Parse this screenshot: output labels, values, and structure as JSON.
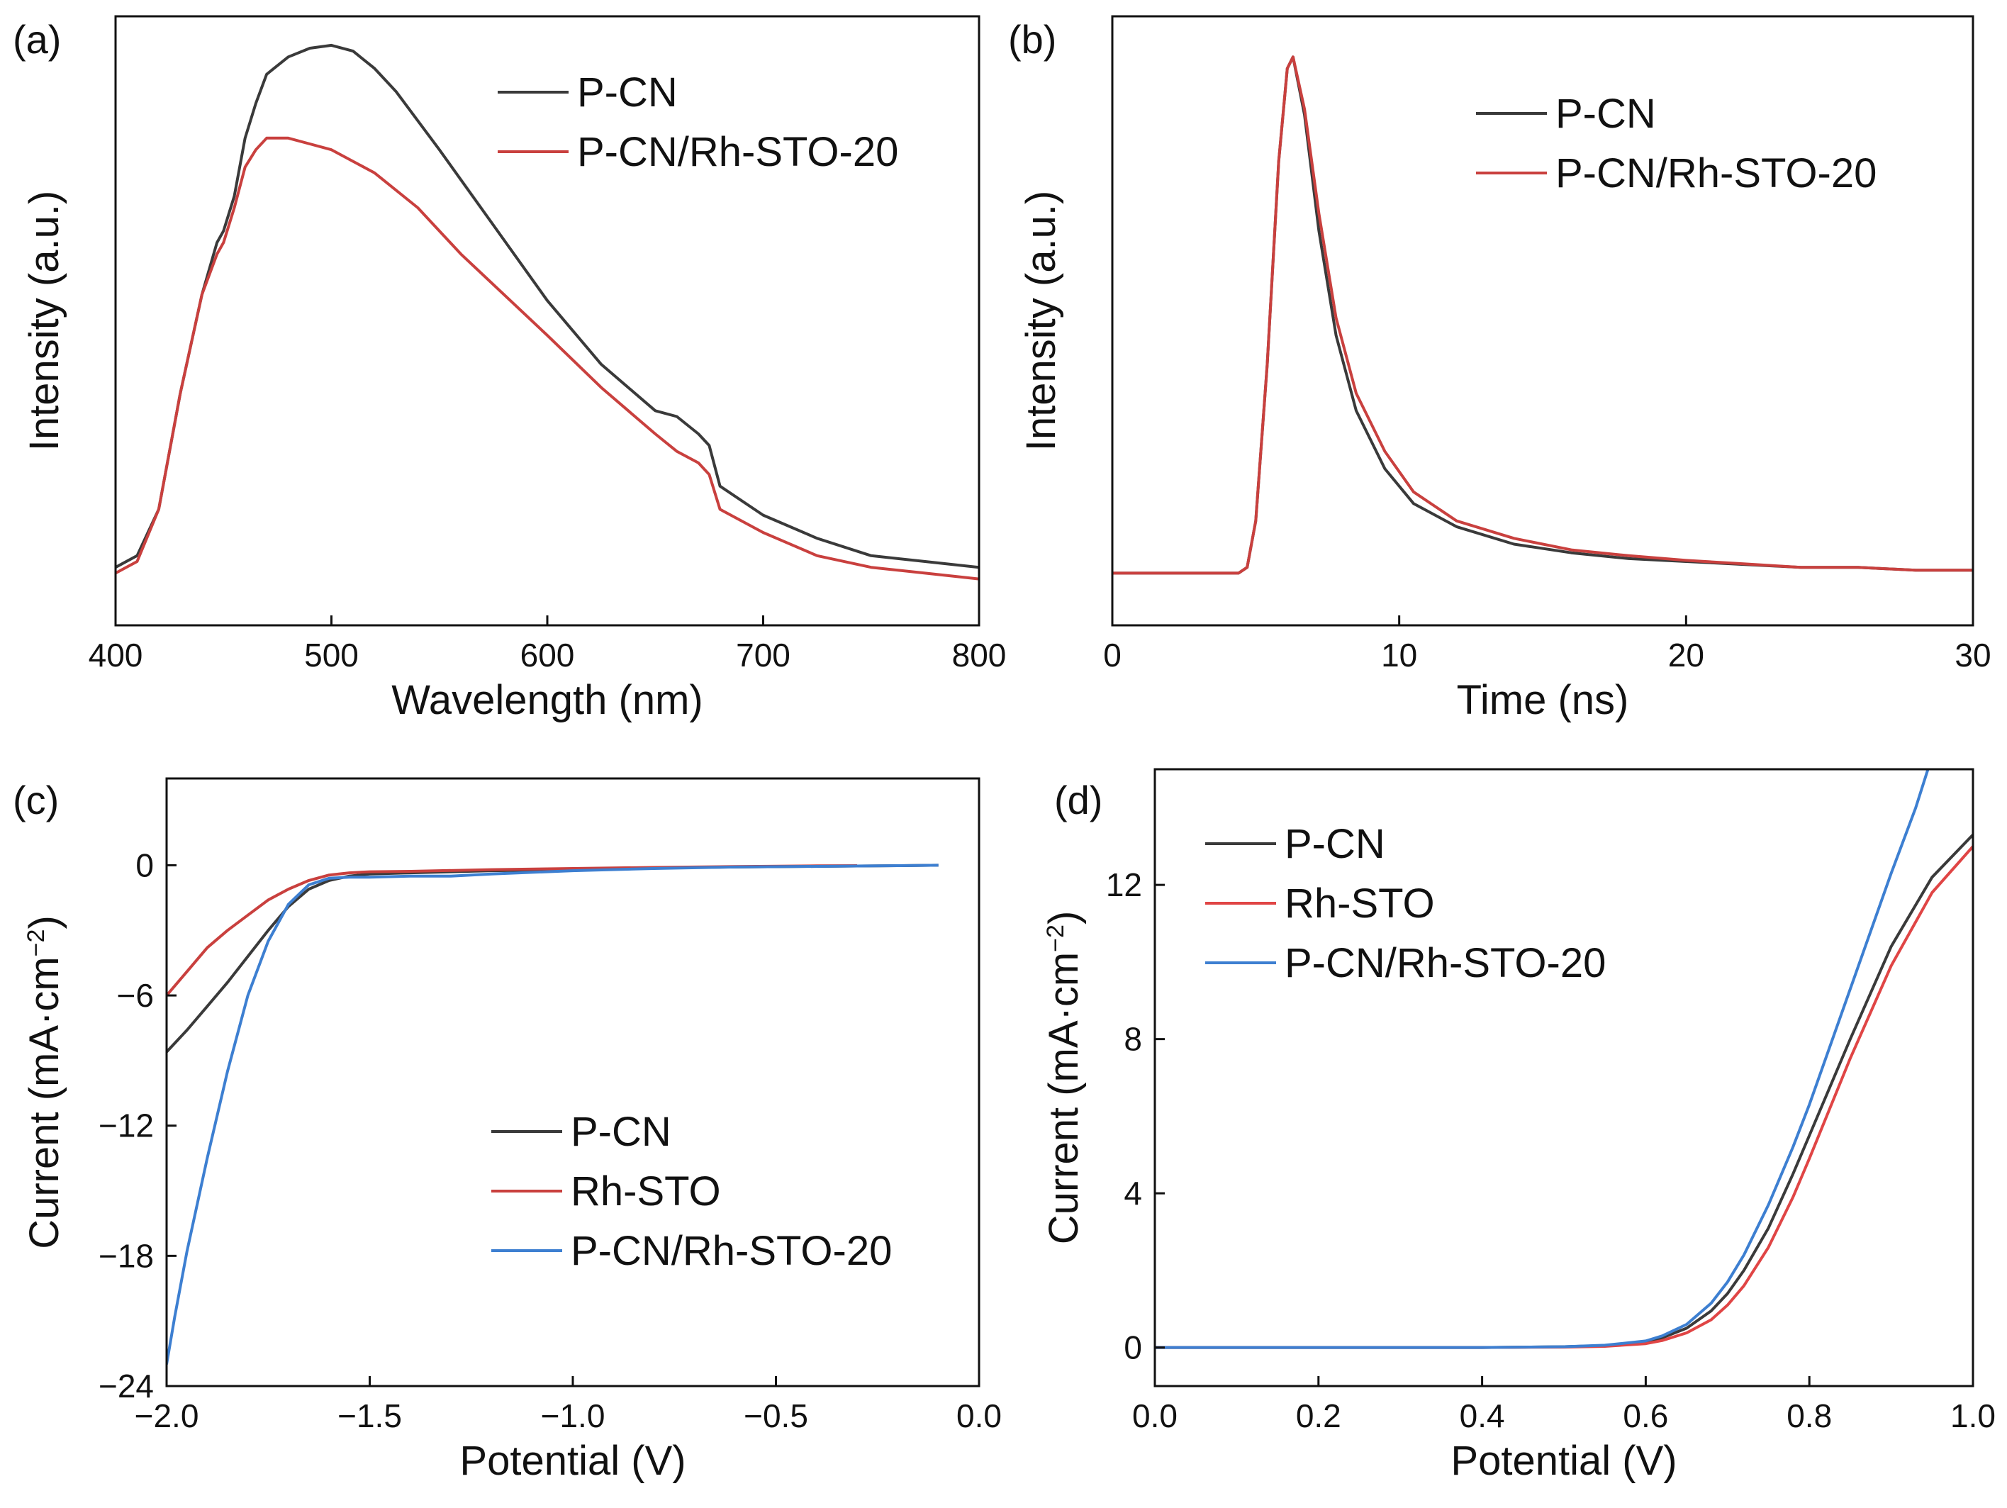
{
  "chart_data": [
    {
      "panel": "(a)",
      "type": "line",
      "title": "",
      "xlabel": "Wavelength (nm)",
      "ylabel": "Intensity (a.u.)",
      "xlim": [
        400,
        800
      ],
      "ylim": [
        0,
        1.05
      ],
      "xticks": [
        "400",
        "500",
        "600",
        "700",
        "800"
      ],
      "yticks": [],
      "legend_position": "top-right",
      "series": [
        {
          "name": "P-CN",
          "color": "#3a3a3a",
          "x": [
            400,
            410,
            420,
            430,
            440,
            447,
            450,
            455,
            460,
            465,
            470,
            480,
            490,
            500,
            510,
            520,
            530,
            550,
            575,
            600,
            625,
            650,
            660,
            670,
            675,
            680,
            700,
            725,
            750,
            775,
            800
          ],
          "y": [
            0.1,
            0.12,
            0.2,
            0.4,
            0.57,
            0.66,
            0.68,
            0.74,
            0.84,
            0.9,
            0.95,
            0.98,
            0.995,
            1.0,
            0.99,
            0.96,
            0.92,
            0.82,
            0.69,
            0.56,
            0.45,
            0.37,
            0.36,
            0.33,
            0.31,
            0.24,
            0.19,
            0.15,
            0.12,
            0.11,
            0.1
          ]
        },
        {
          "name": "P-CN/Rh-STO-20",
          "color": "#c9403e",
          "x": [
            400,
            410,
            420,
            430,
            440,
            447,
            450,
            455,
            460,
            465,
            470,
            480,
            490,
            500,
            520,
            540,
            560,
            600,
            625,
            650,
            660,
            670,
            675,
            680,
            700,
            725,
            750,
            775,
            800
          ],
          "y": [
            0.09,
            0.11,
            0.2,
            0.4,
            0.57,
            0.64,
            0.66,
            0.72,
            0.79,
            0.82,
            0.84,
            0.84,
            0.83,
            0.82,
            0.78,
            0.72,
            0.64,
            0.5,
            0.41,
            0.33,
            0.3,
            0.28,
            0.26,
            0.2,
            0.16,
            0.12,
            0.1,
            0.09,
            0.08
          ]
        }
      ]
    },
    {
      "panel": "(b)",
      "type": "line",
      "title": "",
      "xlabel": "Time (ns)",
      "ylabel": "Intensity (a.u.)",
      "xlim": [
        0,
        30
      ],
      "ylim": [
        0,
        1.05
      ],
      "xticks": [
        "0",
        "10",
        "20",
        "30"
      ],
      "yticks": [],
      "legend_position": "top-right",
      "series": [
        {
          "name": "P-CN",
          "color": "#3a3a3a",
          "x": [
            0,
            4.4,
            4.7,
            5.0,
            5.4,
            5.8,
            6.1,
            6.3,
            6.7,
            7.2,
            7.8,
            8.5,
            9.5,
            10.5,
            12,
            14,
            16,
            18,
            20,
            22,
            24,
            26,
            28,
            30
          ],
          "y": [
            0.09,
            0.09,
            0.1,
            0.18,
            0.45,
            0.8,
            0.96,
            0.98,
            0.88,
            0.68,
            0.5,
            0.37,
            0.27,
            0.21,
            0.17,
            0.14,
            0.125,
            0.115,
            0.11,
            0.105,
            0.1,
            0.1,
            0.095,
            0.095
          ]
        },
        {
          "name": "P-CN/Rh-STO-20",
          "color": "#c9403e",
          "x": [
            0,
            4.4,
            4.7,
            5.0,
            5.4,
            5.8,
            6.1,
            6.3,
            6.7,
            7.2,
            7.8,
            8.5,
            9.5,
            10.5,
            12,
            14,
            16,
            18,
            20,
            22,
            24,
            26,
            28,
            30
          ],
          "y": [
            0.09,
            0.09,
            0.1,
            0.18,
            0.45,
            0.8,
            0.96,
            0.98,
            0.89,
            0.71,
            0.53,
            0.4,
            0.3,
            0.23,
            0.18,
            0.15,
            0.13,
            0.12,
            0.112,
            0.106,
            0.1,
            0.1,
            0.095,
            0.095
          ]
        }
      ]
    },
    {
      "panel": "(c)",
      "type": "line",
      "title": "",
      "xlabel": "Potential (V)",
      "ylabel": "Current (mA·cm",
      "ylabel_sup": "−2",
      "ylabel_close": ")",
      "xlim": [
        -2.0,
        0.0
      ],
      "ylim": [
        -24,
        4
      ],
      "xticks": [
        {
          "v": -2.0,
          "label": "−2.0"
        },
        {
          "v": -1.5,
          "label": "−1.5"
        },
        {
          "v": -1.0,
          "label": "−1.0"
        },
        {
          "v": -0.5,
          "label": "−0.5"
        },
        {
          "v": 0.0,
          "label": "0.0"
        }
      ],
      "yticks": [
        {
          "v": 0,
          "label": "0"
        },
        {
          "v": -6,
          "label": "−6"
        },
        {
          "v": -12,
          "label": "−12"
        },
        {
          "v": -18,
          "label": "−18"
        },
        {
          "v": -24,
          "label": "−24"
        }
      ],
      "legend_position": "bottom-right",
      "series": [
        {
          "name": "P-CN",
          "color": "#3a3a3a",
          "x": [
            -2.0,
            -1.95,
            -1.9,
            -1.85,
            -1.8,
            -1.75,
            -1.7,
            -1.65,
            -1.6,
            -1.55,
            -1.5,
            -1.4,
            -1.3,
            -1.2,
            -1.0,
            -0.8,
            -0.6,
            -0.4,
            -0.2,
            -0.1
          ],
          "y": [
            -8.6,
            -7.6,
            -6.5,
            -5.4,
            -4.2,
            -3.0,
            -1.9,
            -1.1,
            -0.7,
            -0.5,
            -0.4,
            -0.35,
            -0.3,
            -0.25,
            -0.2,
            -0.12,
            -0.08,
            -0.05,
            -0.02,
            0
          ]
        },
        {
          "name": "Rh-STO",
          "color": "#c9403e",
          "x": [
            -2.0,
            -1.95,
            -1.9,
            -1.85,
            -1.8,
            -1.75,
            -1.7,
            -1.65,
            -1.6,
            -1.55,
            -1.5,
            -1.4,
            -1.2,
            -1.0,
            -0.8,
            -0.6,
            -0.4,
            -0.3
          ],
          "y": [
            -6.0,
            -4.9,
            -3.8,
            -3.0,
            -2.3,
            -1.6,
            -1.1,
            -0.7,
            -0.45,
            -0.35,
            -0.3,
            -0.28,
            -0.2,
            -0.15,
            -0.1,
            -0.06,
            -0.03,
            -0.02
          ]
        },
        {
          "name": "P-CN/Rh-STO-20",
          "color": "#3d7fd1",
          "x": [
            -2.0,
            -1.98,
            -1.95,
            -1.9,
            -1.85,
            -1.8,
            -1.75,
            -1.7,
            -1.65,
            -1.6,
            -1.55,
            -1.5,
            -1.4,
            -1.3,
            -1.2,
            -1.0,
            -0.8,
            -0.6,
            -0.4,
            -0.2,
            -0.1
          ],
          "y": [
            -23.0,
            -20.8,
            -17.8,
            -13.5,
            -9.5,
            -6.0,
            -3.5,
            -1.8,
            -0.9,
            -0.6,
            -0.55,
            -0.55,
            -0.5,
            -0.5,
            -0.4,
            -0.25,
            -0.15,
            -0.08,
            -0.05,
            -0.02,
            0
          ]
        }
      ]
    },
    {
      "panel": "(d)",
      "type": "line",
      "title": "",
      "xlabel": "Potential (V)",
      "ylabel": "Current (mA·cm",
      "ylabel_sup": "−2",
      "ylabel_close": ")",
      "xlim": [
        0.0,
        1.0
      ],
      "ylim": [
        -1,
        15
      ],
      "xticks": [
        {
          "v": 0.0,
          "label": "0.0"
        },
        {
          "v": 0.2,
          "label": "0.2"
        },
        {
          "v": 0.4,
          "label": "0.4"
        },
        {
          "v": 0.6,
          "label": "0.6"
        },
        {
          "v": 0.8,
          "label": "0.8"
        },
        {
          "v": 1.0,
          "label": "1.0"
        }
      ],
      "yticks": [
        {
          "v": 0,
          "label": "0"
        },
        {
          "v": 4,
          "label": "4"
        },
        {
          "v": 8,
          "label": "8"
        },
        {
          "v": 12,
          "label": "12"
        }
      ],
      "legend_position": "top-left",
      "series": [
        {
          "name": "P-CN",
          "color": "#3a3a3a",
          "x": [
            0,
            0.1,
            0.2,
            0.3,
            0.4,
            0.5,
            0.55,
            0.6,
            0.62,
            0.65,
            0.68,
            0.7,
            0.72,
            0.75,
            0.78,
            0.8,
            0.85,
            0.9,
            0.95,
            1.0
          ],
          "y": [
            0,
            0,
            0,
            0,
            0,
            0.02,
            0.05,
            0.15,
            0.25,
            0.5,
            0.95,
            1.4,
            2.0,
            3.1,
            4.5,
            5.5,
            8.0,
            10.4,
            12.2,
            13.3
          ]
        },
        {
          "name": "Rh-STO",
          "color": "#e04545",
          "x": [
            0,
            0.1,
            0.2,
            0.3,
            0.4,
            0.5,
            0.55,
            0.6,
            0.62,
            0.65,
            0.68,
            0.7,
            0.72,
            0.75,
            0.78,
            0.8,
            0.85,
            0.9,
            0.95,
            1.0
          ],
          "y": [
            0,
            0,
            0,
            0,
            0,
            0.01,
            0.03,
            0.1,
            0.18,
            0.38,
            0.72,
            1.1,
            1.6,
            2.6,
            3.9,
            4.9,
            7.5,
            9.9,
            11.8,
            13.0
          ]
        },
        {
          "name": "P-CN/Rh-STO-20",
          "color": "#3d7fd1",
          "x": [
            0,
            0.1,
            0.2,
            0.3,
            0.4,
            0.5,
            0.55,
            0.6,
            0.62,
            0.65,
            0.68,
            0.7,
            0.72,
            0.75,
            0.78,
            0.8,
            0.85,
            0.9,
            0.93,
            0.945
          ],
          "y": [
            0,
            0,
            0,
            0,
            0,
            0.02,
            0.06,
            0.17,
            0.3,
            0.6,
            1.15,
            1.7,
            2.4,
            3.7,
            5.2,
            6.3,
            9.3,
            12.3,
            14.0,
            15.0
          ]
        }
      ]
    }
  ]
}
